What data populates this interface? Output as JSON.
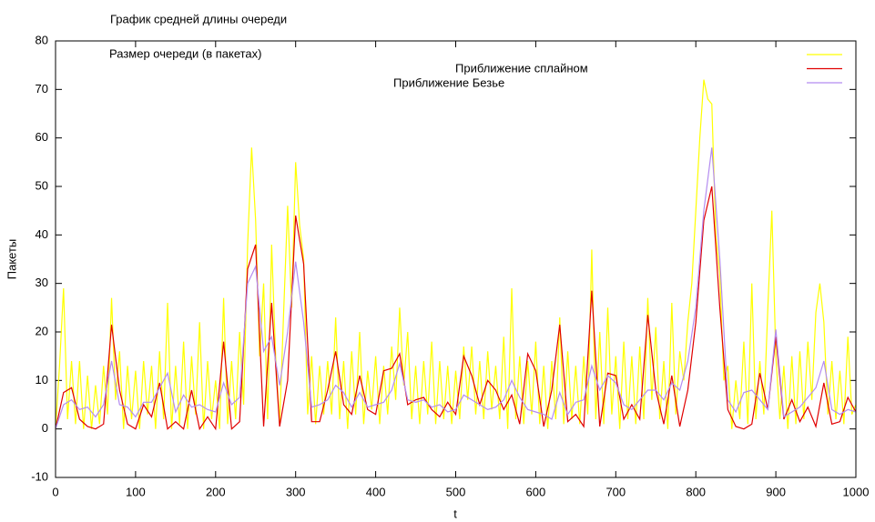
{
  "chart_data": {
    "type": "line",
    "title": "График средней длины очереди",
    "x_label": "t",
    "y_label": "Пакеты",
    "xlim": [
      0,
      1000
    ],
    "xticks": [
      0,
      100,
      200,
      300,
      400,
      500,
      600,
      700,
      800,
      900,
      1000
    ],
    "ylim": [
      -10,
      80
    ],
    "yticks": [
      -10,
      0,
      10,
      20,
      30,
      40,
      50,
      60,
      70,
      80
    ],
    "legend": "top-right",
    "series": [
      {
        "name": "Размер очереди (в пакетах)",
        "color": "#ffff00",
        "x": [
          0,
          5,
          10,
          15,
          20,
          25,
          30,
          35,
          40,
          45,
          50,
          55,
          60,
          65,
          70,
          75,
          80,
          85,
          90,
          95,
          100,
          105,
          110,
          115,
          120,
          125,
          130,
          135,
          140,
          145,
          150,
          155,
          160,
          165,
          170,
          175,
          180,
          185,
          190,
          195,
          200,
          205,
          210,
          215,
          220,
          225,
          230,
          235,
          240,
          245,
          250,
          255,
          260,
          265,
          270,
          275,
          280,
          285,
          290,
          295,
          300,
          305,
          310,
          315,
          320,
          325,
          330,
          335,
          340,
          345,
          350,
          355,
          360,
          365,
          370,
          375,
          380,
          385,
          390,
          395,
          400,
          405,
          410,
          415,
          420,
          425,
          430,
          435,
          440,
          445,
          450,
          455,
          460,
          465,
          470,
          475,
          480,
          485,
          490,
          495,
          500,
          505,
          510,
          515,
          520,
          525,
          530,
          535,
          540,
          545,
          550,
          555,
          560,
          565,
          570,
          575,
          580,
          585,
          590,
          595,
          600,
          605,
          610,
          615,
          620,
          625,
          630,
          635,
          640,
          645,
          650,
          655,
          660,
          665,
          670,
          675,
          680,
          685,
          690,
          695,
          700,
          705,
          710,
          715,
          720,
          725,
          730,
          735,
          740,
          745,
          750,
          755,
          760,
          765,
          770,
          775,
          780,
          785,
          790,
          795,
          800,
          805,
          810,
          815,
          820,
          825,
          830,
          835,
          840,
          845,
          850,
          855,
          860,
          865,
          870,
          875,
          880,
          885,
          890,
          895,
          900,
          905,
          910,
          915,
          920,
          925,
          930,
          935,
          940,
          945,
          950,
          955,
          960,
          965,
          970,
          975,
          980,
          985,
          990,
          995,
          1000
        ],
        "values": [
          0,
          13,
          29,
          2,
          14,
          1,
          14,
          0,
          11,
          0,
          9,
          1,
          13,
          3,
          27,
          6,
          16,
          0,
          13,
          2,
          12,
          0,
          14,
          3,
          13,
          0,
          16,
          2,
          26,
          0,
          13,
          1,
          18,
          0,
          15,
          3,
          22,
          0,
          14,
          2,
          10,
          0,
          27,
          1,
          14,
          2,
          20,
          5,
          38,
          58,
          43,
          15,
          30,
          2,
          38,
          15,
          1,
          24,
          46,
          25,
          55,
          42,
          35,
          3,
          15,
          1,
          13,
          3,
          14,
          3,
          23,
          2,
          14,
          0,
          16,
          3,
          20,
          1,
          12,
          4,
          15,
          1,
          13,
          3,
          17,
          6,
          25,
          9,
          20,
          2,
          13,
          1,
          14,
          3,
          18,
          1,
          14,
          2,
          13,
          1,
          12,
          2,
          17,
          6,
          17,
          3,
          14,
          2,
          16,
          4,
          13,
          2,
          19,
          0,
          29,
          2,
          15,
          1,
          14,
          3,
          18,
          1,
          13,
          0,
          14,
          2,
          23,
          1,
          16,
          2,
          13,
          1,
          15,
          3,
          37,
          2,
          20,
          1,
          25,
          3,
          15,
          0,
          18,
          2,
          15,
          1,
          17,
          2,
          27,
          6,
          21,
          2,
          14,
          0,
          26,
          3,
          16,
          10,
          22,
          30,
          45,
          60,
          72,
          68,
          67,
          40,
          32,
          10,
          13,
          0,
          10,
          2,
          18,
          1,
          30,
          2,
          14,
          3,
          25,
          45,
          15,
          2,
          13,
          0,
          15,
          1,
          16,
          2,
          18,
          6,
          24,
          30,
          22,
          3,
          14,
          2,
          12,
          1,
          19,
          3,
          5
        ]
      },
      {
        "name": "Приближение сплайном",
        "color": "#e00000",
        "x": [
          0,
          10,
          20,
          30,
          40,
          50,
          60,
          70,
          80,
          90,
          100,
          110,
          120,
          130,
          140,
          150,
          160,
          170,
          180,
          190,
          200,
          210,
          220,
          230,
          240,
          250,
          260,
          270,
          280,
          290,
          300,
          310,
          320,
          330,
          340,
          350,
          360,
          370,
          380,
          390,
          400,
          410,
          420,
          430,
          440,
          450,
          460,
          470,
          480,
          490,
          500,
          510,
          520,
          530,
          540,
          550,
          560,
          570,
          580,
          590,
          600,
          610,
          620,
          630,
          640,
          650,
          660,
          670,
          680,
          690,
          700,
          710,
          720,
          730,
          740,
          750,
          760,
          770,
          780,
          790,
          800,
          810,
          820,
          830,
          840,
          850,
          860,
          870,
          880,
          890,
          900,
          910,
          920,
          930,
          940,
          950,
          960,
          970,
          980,
          990,
          1000
        ],
        "values": [
          0,
          7.5,
          8.5,
          2,
          0.5,
          0,
          1,
          21.5,
          8,
          1,
          0,
          5,
          2.5,
          9.5,
          0,
          1.5,
          0,
          8,
          0,
          2.5,
          0,
          18,
          0,
          1.5,
          33,
          38,
          0.5,
          26,
          0.5,
          10,
          44,
          34,
          1.5,
          1.5,
          8,
          16,
          5,
          3,
          11,
          4,
          3,
          12,
          12.5,
          15.5,
          5,
          6,
          6.5,
          4,
          2.5,
          5.5,
          3,
          15,
          11,
          5,
          10,
          8,
          4,
          7,
          1,
          15.5,
          12,
          0.5,
          8,
          21.5,
          1.5,
          3,
          0.5,
          28.5,
          0.5,
          11.5,
          11,
          2,
          5,
          2,
          23.5,
          8,
          1,
          11,
          0.5,
          8,
          22,
          43,
          50,
          25,
          4,
          0.5,
          0,
          1,
          11.5,
          4,
          19,
          2,
          6,
          1.5,
          4.5,
          0.5,
          9.5,
          1,
          1.5,
          6.5,
          3.5
        ]
      },
      {
        "name": "Приближение Безье",
        "color": "#b48cf0",
        "x": [
          0,
          10,
          20,
          30,
          40,
          50,
          60,
          70,
          80,
          90,
          100,
          110,
          120,
          130,
          140,
          150,
          160,
          170,
          180,
          190,
          200,
          210,
          220,
          230,
          240,
          250,
          260,
          270,
          280,
          290,
          300,
          310,
          320,
          330,
          340,
          350,
          360,
          370,
          380,
          390,
          400,
          410,
          420,
          430,
          440,
          450,
          460,
          470,
          480,
          490,
          500,
          510,
          520,
          530,
          540,
          550,
          560,
          570,
          580,
          590,
          600,
          610,
          620,
          630,
          640,
          650,
          660,
          670,
          680,
          690,
          700,
          710,
          720,
          730,
          740,
          750,
          760,
          770,
          780,
          790,
          800,
          810,
          820,
          830,
          840,
          850,
          860,
          870,
          880,
          890,
          900,
          910,
          920,
          930,
          940,
          950,
          960,
          970,
          980,
          990,
          1000
        ],
        "values": [
          0,
          5,
          6,
          4,
          4.5,
          2.5,
          5,
          14,
          5,
          4.5,
          2.5,
          5.5,
          5.5,
          8.5,
          11.5,
          3.5,
          7,
          4.5,
          5,
          4,
          3.5,
          9.5,
          5,
          6.5,
          30,
          33.5,
          16,
          19,
          9,
          20,
          34.5,
          22,
          4.5,
          5,
          6,
          9,
          7.5,
          4.5,
          7.5,
          4.5,
          5,
          5.5,
          8,
          13.5,
          6,
          5.5,
          6,
          4.5,
          5,
          3.5,
          4,
          7,
          6,
          5,
          4,
          4.5,
          6,
          10,
          6.5,
          4,
          3.5,
          3,
          2,
          7.5,
          3,
          5.5,
          6,
          13,
          8,
          11,
          9.5,
          5,
          4,
          6,
          8,
          8,
          6,
          9.5,
          8,
          14,
          25,
          45,
          58,
          35,
          6,
          3.5,
          7.5,
          8,
          6,
          4,
          20.5,
          2.5,
          3.5,
          4.5,
          6.5,
          8.5,
          14,
          4,
          3,
          4,
          3.5
        ]
      }
    ]
  }
}
